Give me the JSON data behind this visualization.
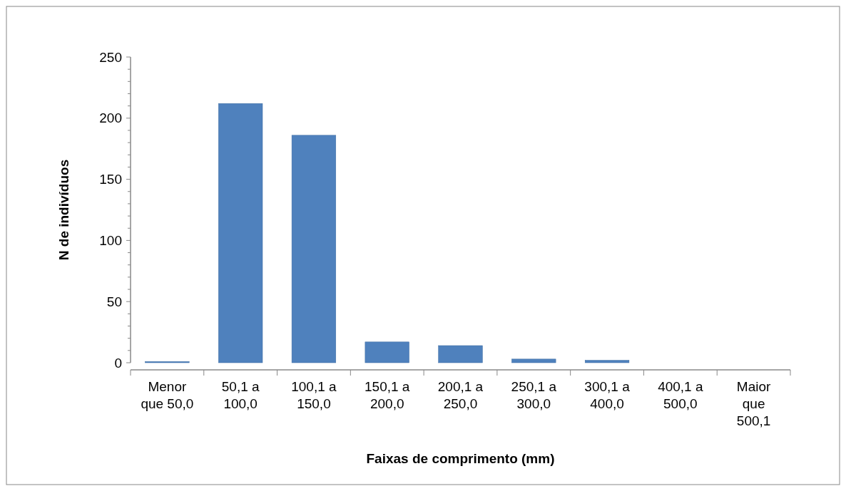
{
  "chart_data": {
    "type": "bar",
    "xlabel": "Faixas de comprimento (mm)",
    "ylabel": "N de indivíduos",
    "categories": [
      "Menor que 50,0",
      "50,1 a 100,0",
      "100,1 a 150,0",
      "150,1 a 200,0",
      "200,1 a 250,0",
      "250,1 a 300,0",
      "300,1 a 400,0",
      "400,1 a 500,0",
      "Maior que 500,1"
    ],
    "values": [
      1,
      212,
      186,
      17,
      14,
      3,
      2,
      0,
      0
    ],
    "color": "#4f81bd",
    "ylim": [
      0,
      250
    ],
    "yticks": [
      0,
      {
        "value": 10,
        "label": null
      },
      {
        "value": 20,
        "label": null
      },
      {
        "value": 30,
        "label": null
      },
      {
        "value": 40,
        "label": null
      },
      50,
      {
        "value": 60,
        "label": null
      },
      {
        "value": 70,
        "label": null
      },
      {
        "value": 80,
        "label": null
      },
      {
        "value": 90,
        "label": null
      },
      100,
      {
        "value": 110,
        "label": null
      },
      {
        "value": 120,
        "label": null
      },
      {
        "value": 130,
        "label": null
      },
      {
        "value": 140,
        "label": null
      },
      150,
      {
        "value": 160,
        "label": null
      },
      {
        "value": 170,
        "label": null
      },
      {
        "value": 180,
        "label": null
      },
      {
        "value": 190,
        "label": null
      },
      200,
      {
        "value": 210,
        "label": null
      },
      {
        "value": 220,
        "label": null
      },
      {
        "value": 230,
        "label": null
      },
      {
        "value": 240,
        "label": null
      },
      250
    ],
    "grid": false
  }
}
